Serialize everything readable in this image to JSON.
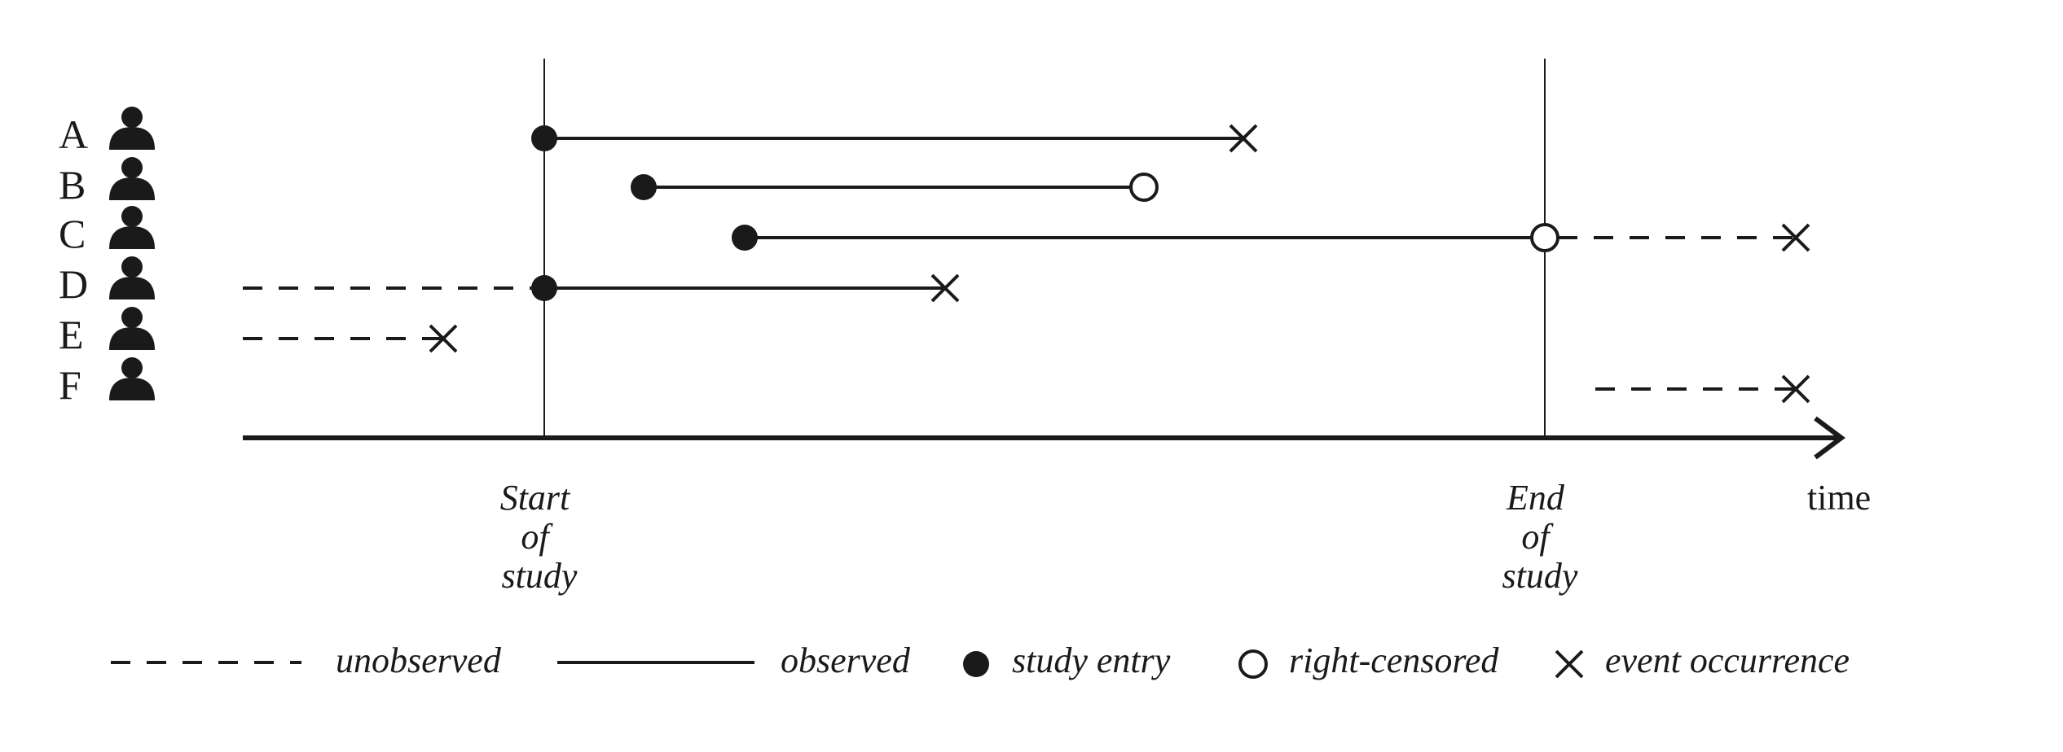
{
  "subjects": [
    {
      "label": "A",
      "segments": [
        {
          "from": "start",
          "to": "A_x",
          "style": "observed"
        }
      ],
      "entry": "start",
      "end_marker": "event"
    },
    {
      "label": "B",
      "segments": [
        {
          "from": "B_entry",
          "to": "B_end",
          "style": "observed"
        }
      ],
      "entry": "B_entry",
      "end_marker": "censored"
    },
    {
      "label": "C",
      "segments": [
        {
          "from": "C_entry",
          "to": "end",
          "style": "observed"
        },
        {
          "from": "end",
          "to": "C_x",
          "style": "unobserved"
        }
      ],
      "entry": "C_entry",
      "mid_marker": "censored",
      "end_marker": "event"
    },
    {
      "label": "D",
      "segments": [
        {
          "from": "before",
          "to": "start",
          "style": "unobserved"
        },
        {
          "from": "start",
          "to": "D_x",
          "style": "observed"
        }
      ],
      "entry": "start",
      "end_marker": "event"
    },
    {
      "label": "E",
      "segments": [
        {
          "from": "before",
          "to": "E_x",
          "style": "unobserved"
        }
      ],
      "end_marker": "event"
    },
    {
      "label": "F",
      "segments": [
        {
          "from": "after",
          "to": "F_x",
          "style": "unobserved"
        }
      ],
      "end_marker": "event"
    }
  ],
  "timeline": {
    "start_label": [
      "Start",
      "of",
      "study"
    ],
    "end_label": [
      "End",
      "of",
      "study"
    ],
    "axis_label": "time"
  },
  "legend": {
    "unobserved": "unobserved",
    "observed": "observed",
    "study_entry": "study entry",
    "right_censored": "right-censored",
    "event_occurrence": "event occurrence"
  },
  "icons": {
    "subject": "person-icon"
  },
  "colors": {
    "ink": "#1a1a1a",
    "background": "#ffffff"
  }
}
